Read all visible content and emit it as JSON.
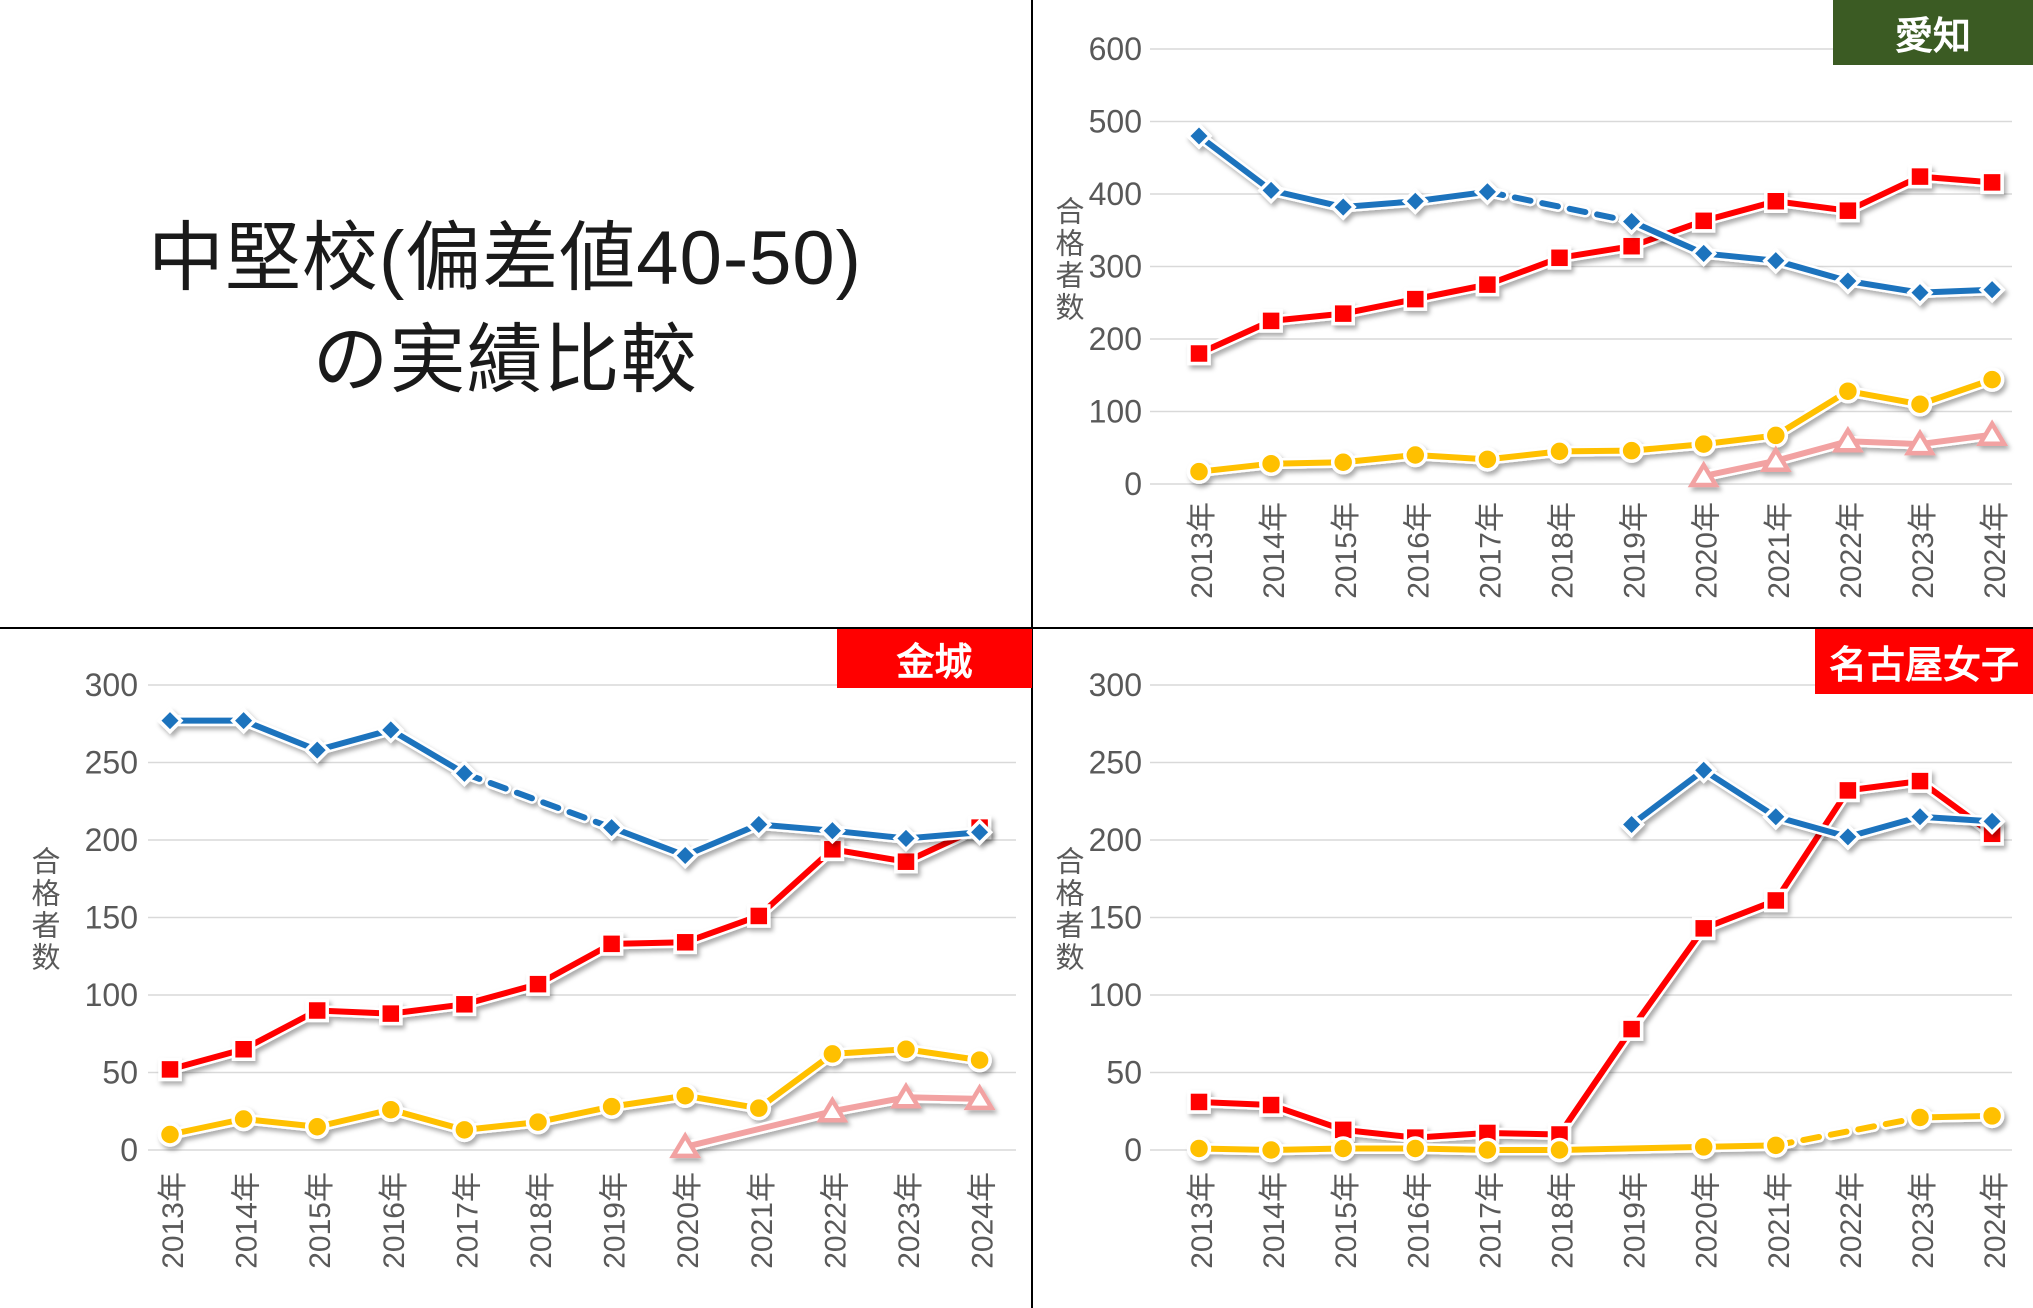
{
  "page": {
    "title_line1": "中堅校(偏差値40-50)",
    "title_line2": "の実績比較"
  },
  "ui_colors": {
    "background": "#FFFFFF",
    "divider": "#000000",
    "gridline": "#D9D9D9",
    "axis_label_gray": "#595959",
    "title_text": "#1A1A1A"
  },
  "chart_data": {
    "type": "line",
    "grid": "horizontal",
    "legend": "none",
    "y_axis_title": "合格者数",
    "x_tick_labels": [
      "2013年",
      "2014年",
      "2015年",
      "2016年",
      "2017年",
      "2018年",
      "2019年",
      "2020年",
      "2021年",
      "2022年",
      "2023年",
      "2024年"
    ],
    "charts": [
      {
        "label": "愛知",
        "badge_color": "#3B5B23",
        "badge_text_color": "#FFFFFF",
        "ylim": [
          0,
          600
        ],
        "ytick_step": 100,
        "yticks": [
          0,
          100,
          200,
          300,
          400,
          500,
          600
        ],
        "series": [
          {
            "name": "blue-diamond",
            "marker": "diamond",
            "color": "#1F73BD",
            "values": [
              480,
              405,
              382,
              390,
              403,
              null,
              362,
              318,
              308,
              280,
              264,
              268
            ],
            "dashed_segments": [
              [
                4,
                6
              ]
            ]
          },
          {
            "name": "red-square",
            "marker": "square",
            "color": "#FF0000",
            "values": [
              180,
              225,
              235,
              255,
              275,
              312,
              328,
              363,
              390,
              377,
              424,
              416
            ],
            "dashed_segments": []
          },
          {
            "name": "yellow-circle",
            "marker": "circle",
            "color": "#FFC000",
            "values": [
              17,
              28,
              30,
              40,
              34,
              45,
              46,
              55,
              67,
              128,
              110,
              144
            ],
            "dashed_segments": []
          },
          {
            "name": "pink-triangle",
            "marker": "triangle",
            "color": "#F2A2A2",
            "values": [
              null,
              null,
              null,
              null,
              null,
              null,
              null,
              11,
              32,
              59,
              55,
              68
            ],
            "dashed_segments": []
          }
        ]
      },
      {
        "label": "金城",
        "badge_color": "#FF0000",
        "badge_text_color": "#FFFFFF",
        "ylim": [
          0,
          300
        ],
        "ytick_step": 50,
        "yticks": [
          0,
          50,
          100,
          150,
          200,
          250,
          300
        ],
        "series": [
          {
            "name": "blue-diamond",
            "marker": "diamond",
            "color": "#1F73BD",
            "values": [
              277,
              277,
              258,
              271,
              243,
              null,
              208,
              190,
              210,
              206,
              201,
              205
            ],
            "dashed_segments": [
              [
                4,
                6
              ]
            ]
          },
          {
            "name": "red-square",
            "marker": "square",
            "color": "#FF0000",
            "values": [
              52,
              65,
              90,
              88,
              94,
              107,
              133,
              134,
              151,
              194,
              186,
              208
            ],
            "dashed_segments": []
          },
          {
            "name": "yellow-circle",
            "marker": "circle",
            "color": "#FFC000",
            "values": [
              10,
              20,
              15,
              26,
              13,
              18,
              28,
              35,
              27,
              62,
              65,
              58
            ],
            "dashed_segments": []
          },
          {
            "name": "pink-triangle",
            "marker": "triangle",
            "color": "#F2A2A2",
            "values": [
              null,
              null,
              null,
              null,
              null,
              null,
              null,
              2,
              null,
              25,
              34,
              33
            ],
            "dashed_segments": []
          }
        ]
      },
      {
        "label": "名古屋女子",
        "badge_color": "#FF0000",
        "badge_text_color": "#FFFFFF",
        "ylim": [
          0,
          300
        ],
        "ytick_step": 50,
        "yticks": [
          0,
          50,
          100,
          150,
          200,
          250,
          300
        ],
        "series": [
          {
            "name": "blue-diamond",
            "marker": "diamond",
            "color": "#1F73BD",
            "values": [
              null,
              null,
              null,
              null,
              null,
              null,
              210,
              245,
              215,
              202,
              215,
              212
            ],
            "dashed_segments": []
          },
          {
            "name": "red-square",
            "marker": "square",
            "color": "#FF0000",
            "values": [
              31,
              29,
              13,
              8,
              11,
              10,
              78,
              143,
              161,
              232,
              238,
              204
            ],
            "dashed_segments": []
          },
          {
            "name": "yellow-circle",
            "marker": "circle",
            "color": "#FFC000",
            "values": [
              1,
              0,
              1,
              1,
              0,
              0,
              null,
              2,
              3,
              null,
              21,
              22
            ],
            "dashed_segments": [
              [
                8,
                10
              ]
            ]
          }
        ]
      }
    ]
  }
}
